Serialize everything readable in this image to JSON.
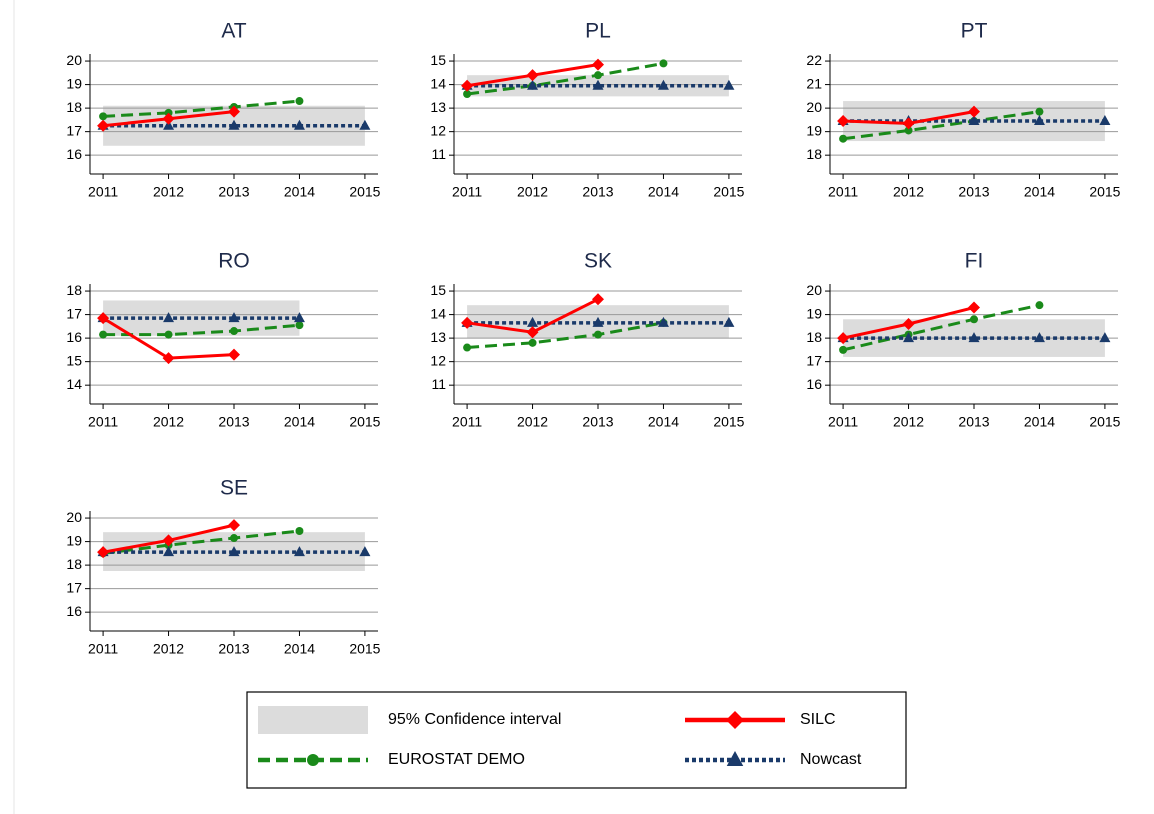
{
  "legend": [
    {
      "name": "95% Confidence interval",
      "color": "#dcdcdc",
      "kind": "band"
    },
    {
      "name": "SILC",
      "color": "#ff0000",
      "marker": "diamond",
      "dash": "solid"
    },
    {
      "name": "EUROSTAT DEMO",
      "color": "#1a8a1a",
      "marker": "circle",
      "dash": "dashed"
    },
    {
      "name": "Nowcast",
      "color": "#1a3a6a",
      "marker": "triangle",
      "dash": "dotted"
    }
  ],
  "chart_data": [
    {
      "type": "line",
      "title": "AT",
      "x": [
        2011,
        2012,
        2013,
        2014,
        2015
      ],
      "xlim": [
        2010.8,
        2015.2
      ],
      "xticks": [
        2011,
        2012,
        2013,
        2014,
        2015
      ],
      "ylim": [
        15.2,
        20.3
      ],
      "yticks": [
        16,
        17,
        18,
        19,
        20
      ],
      "grid": true,
      "ci": {
        "x": [
          2011,
          2015
        ],
        "lower": 16.4,
        "upper": 18.1
      },
      "series": [
        {
          "values": [
            17.25,
            17.55,
            17.85,
            null,
            null
          ]
        },
        {
          "values": [
            17.65,
            17.8,
            18.05,
            18.3,
            null
          ]
        },
        {
          "values": [
            17.25,
            17.25,
            17.25,
            17.25,
            17.25
          ]
        }
      ]
    },
    {
      "type": "line",
      "title": "PL",
      "x": [
        2011,
        2012,
        2013,
        2014,
        2015
      ],
      "xlim": [
        2010.8,
        2015.2
      ],
      "xticks": [
        2011,
        2012,
        2013,
        2014,
        2015
      ],
      "ylim": [
        10.2,
        15.3
      ],
      "yticks": [
        11,
        12,
        13,
        14,
        15
      ],
      "grid": true,
      "ci": {
        "x": [
          2011,
          2015
        ],
        "lower": 13.5,
        "upper": 14.4
      },
      "series": [
        {
          "values": [
            13.95,
            14.4,
            14.85,
            null,
            null
          ]
        },
        {
          "values": [
            13.6,
            13.95,
            14.4,
            14.9,
            null
          ]
        },
        {
          "values": [
            13.95,
            13.95,
            13.95,
            13.95,
            13.95
          ]
        }
      ]
    },
    {
      "type": "line",
      "title": "PT",
      "x": [
        2011,
        2012,
        2013,
        2014,
        2015
      ],
      "xlim": [
        2010.8,
        2015.2
      ],
      "xticks": [
        2011,
        2012,
        2013,
        2014,
        2015
      ],
      "ylim": [
        17.2,
        22.3
      ],
      "yticks": [
        18,
        19,
        20,
        21,
        22
      ],
      "grid": true,
      "ci": {
        "x": [
          2011,
          2015
        ],
        "lower": 18.6,
        "upper": 20.3
      },
      "series": [
        {
          "values": [
            19.45,
            19.35,
            19.85,
            null,
            null
          ]
        },
        {
          "values": [
            18.7,
            19.05,
            19.45,
            19.85,
            null
          ]
        },
        {
          "values": [
            19.45,
            19.45,
            19.45,
            19.45,
            19.45
          ]
        }
      ]
    },
    {
      "type": "line",
      "title": "RO",
      "x": [
        2011,
        2012,
        2013,
        2014,
        2015
      ],
      "xlim": [
        2010.8,
        2015.2
      ],
      "xticks": [
        2011,
        2012,
        2013,
        2014,
        2015
      ],
      "ylim": [
        13.2,
        18.3
      ],
      "yticks": [
        14,
        15,
        16,
        17,
        18
      ],
      "grid": true,
      "ci": {
        "x": [
          2011,
          2014
        ],
        "lower": 16.1,
        "upper": 17.6
      },
      "series": [
        {
          "values": [
            16.85,
            15.15,
            15.3,
            null,
            null
          ]
        },
        {
          "values": [
            16.15,
            16.15,
            16.3,
            16.55,
            null
          ]
        },
        {
          "values": [
            16.85,
            16.85,
            16.85,
            16.85,
            null
          ]
        }
      ]
    },
    {
      "type": "line",
      "title": "SK",
      "x": [
        2011,
        2012,
        2013,
        2014,
        2015
      ],
      "xlim": [
        2010.8,
        2015.2
      ],
      "xticks": [
        2011,
        2012,
        2013,
        2014,
        2015
      ],
      "ylim": [
        10.2,
        15.3
      ],
      "yticks": [
        11,
        12,
        13,
        14,
        15
      ],
      "grid": true,
      "ci": {
        "x": [
          2011,
          2015
        ],
        "lower": 13.0,
        "upper": 14.4
      },
      "series": [
        {
          "values": [
            13.65,
            13.25,
            14.65,
            null,
            null
          ]
        },
        {
          "values": [
            12.6,
            12.8,
            13.15,
            13.65,
            null
          ]
        },
        {
          "values": [
            13.65,
            13.65,
            13.65,
            13.65,
            13.65
          ]
        }
      ]
    },
    {
      "type": "line",
      "title": "FI",
      "x": [
        2011,
        2012,
        2013,
        2014,
        2015
      ],
      "xlim": [
        2010.8,
        2015.2
      ],
      "xticks": [
        2011,
        2012,
        2013,
        2014,
        2015
      ],
      "ylim": [
        15.2,
        20.3
      ],
      "yticks": [
        16,
        17,
        18,
        19,
        20
      ],
      "grid": true,
      "ci": {
        "x": [
          2011,
          2015
        ],
        "lower": 17.2,
        "upper": 18.8
      },
      "series": [
        {
          "values": [
            18.0,
            18.6,
            19.3,
            null,
            null
          ]
        },
        {
          "values": [
            17.5,
            18.15,
            18.8,
            19.4,
            null
          ]
        },
        {
          "values": [
            18.0,
            18.0,
            18.0,
            18.0,
            18.0
          ]
        }
      ]
    },
    {
      "type": "line",
      "title": "SE",
      "x": [
        2011,
        2012,
        2013,
        2014,
        2015
      ],
      "xlim": [
        2010.8,
        2015.2
      ],
      "xticks": [
        2011,
        2012,
        2013,
        2014,
        2015
      ],
      "ylim": [
        15.2,
        20.3
      ],
      "yticks": [
        16,
        17,
        18,
        19,
        20
      ],
      "grid": true,
      "ci": {
        "x": [
          2011,
          2015
        ],
        "lower": 17.75,
        "upper": 19.4
      },
      "series": [
        {
          "values": [
            18.55,
            19.05,
            19.7,
            null,
            null
          ]
        },
        {
          "values": [
            18.5,
            18.85,
            19.15,
            19.45,
            null
          ]
        },
        {
          "values": [
            18.55,
            18.55,
            18.55,
            18.55,
            18.55
          ]
        }
      ]
    }
  ]
}
